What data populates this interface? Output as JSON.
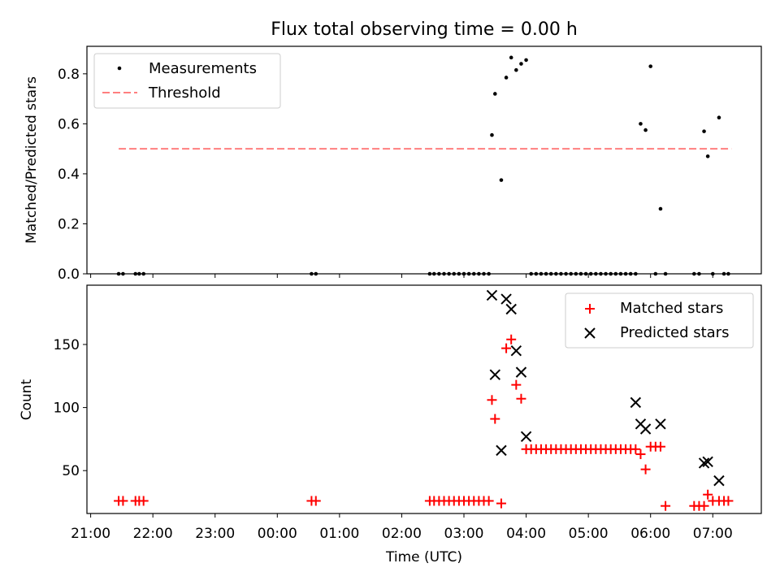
{
  "figure": {
    "title": "Flux total observing time = 0.00 h"
  },
  "chart_data": [
    {
      "panel": "top",
      "type": "scatter",
      "ylabel": "Matched/Predicted stars",
      "xlabel": "",
      "ylim": [
        0,
        0.91
      ],
      "yticks": [
        0.0,
        0.2,
        0.4,
        0.6,
        0.8
      ],
      "ytick_labels": [
        "0.0",
        "0.2",
        "0.4",
        "0.6",
        "0.8"
      ],
      "legend_position": "top-left",
      "threshold": {
        "name": "Threshold",
        "value": 0.5,
        "x_start": 21.45,
        "x_end": 31.3,
        "color": "#ff7f7f"
      },
      "series": [
        {
          "name": "Measurements",
          "marker": "dot",
          "color": "#000000",
          "x": [
            21.45,
            21.52,
            21.72,
            21.78,
            21.85,
            24.55,
            24.62,
            26.45,
            26.52,
            26.6,
            26.68,
            26.76,
            26.84,
            26.92,
            27.0,
            27.08,
            27.16,
            27.24,
            27.32,
            27.4,
            27.45,
            27.5,
            27.6,
            27.68,
            27.76,
            27.84,
            27.92,
            28.0,
            28.08,
            28.16,
            28.24,
            28.32,
            28.4,
            28.48,
            28.56,
            28.64,
            28.72,
            28.8,
            28.88,
            28.96,
            29.04,
            29.12,
            29.2,
            29.28,
            29.36,
            29.44,
            29.52,
            29.6,
            29.68,
            29.76,
            29.84,
            29.92,
            30.0,
            30.08,
            30.16,
            30.24,
            30.7,
            30.78,
            30.86,
            30.92,
            31.0,
            31.1,
            31.18,
            31.25
          ],
          "y": [
            0,
            0,
            0,
            0,
            0,
            0,
            0,
            0,
            0,
            0,
            0,
            0,
            0,
            0,
            0,
            0,
            0,
            0,
            0,
            0,
            0.555,
            0.72,
            0.375,
            0.785,
            0.865,
            0.815,
            0.84,
            0.855,
            0,
            0,
            0,
            0,
            0,
            0,
            0,
            0,
            0,
            0,
            0,
            0,
            0,
            0,
            0,
            0,
            0,
            0,
            0,
            0,
            0,
            0,
            0.6,
            0.575,
            0.83,
            0,
            0.26,
            0,
            0,
            0,
            0.57,
            0.47,
            0,
            0.625,
            0,
            0
          ]
        }
      ]
    },
    {
      "panel": "bottom",
      "type": "scatter",
      "ylabel": "Count",
      "xlabel": "Time (UTC)",
      "ylim": [
        16,
        197
      ],
      "yticks": [
        50,
        100,
        150
      ],
      "ytick_labels": [
        "50",
        "100",
        "150"
      ],
      "xlim": [
        20.94,
        31.78
      ],
      "xticks": [
        21,
        22,
        23,
        24,
        25,
        26,
        27,
        28,
        29,
        30,
        31
      ],
      "xtick_labels": [
        "21:00",
        "22:00",
        "23:00",
        "00:00",
        "01:00",
        "02:00",
        "03:00",
        "04:00",
        "05:00",
        "06:00",
        "07:00"
      ],
      "legend_position": "top-right",
      "series": [
        {
          "name": "Matched stars",
          "marker": "plus",
          "color": "#ff0000",
          "x": [
            21.45,
            21.52,
            21.72,
            21.78,
            21.85,
            24.55,
            24.62,
            26.45,
            26.52,
            26.6,
            26.68,
            26.76,
            26.84,
            26.92,
            27.0,
            27.08,
            27.16,
            27.24,
            27.32,
            27.4,
            27.45,
            27.5,
            27.6,
            27.68,
            27.76,
            27.84,
            27.92,
            28.0,
            28.08,
            28.16,
            28.24,
            28.32,
            28.4,
            28.48,
            28.56,
            28.64,
            28.72,
            28.8,
            28.88,
            28.96,
            29.04,
            29.12,
            29.2,
            29.28,
            29.36,
            29.44,
            29.52,
            29.6,
            29.68,
            29.76,
            29.84,
            29.92,
            30.0,
            30.08,
            30.16,
            30.24,
            30.7,
            30.78,
            30.86,
            30.92,
            31.0,
            31.1,
            31.18,
            31.25
          ],
          "y": [
            26,
            26,
            26,
            26,
            26,
            26,
            26,
            26,
            26,
            26,
            26,
            26,
            26,
            26,
            26,
            26,
            26,
            26,
            26,
            26,
            106,
            91,
            24,
            147,
            154,
            118,
            107,
            67,
            67,
            67,
            67,
            67,
            67,
            67,
            67,
            67,
            67,
            67,
            67,
            67,
            67,
            67,
            67,
            67,
            67,
            67,
            67,
            67,
            67,
            67,
            63,
            51,
            69,
            69,
            69,
            22,
            22,
            22,
            22,
            31,
            26,
            26,
            26,
            26
          ]
        },
        {
          "name": "Predicted stars",
          "marker": "x",
          "color": "#000000",
          "x": [
            27.45,
            27.5,
            27.6,
            27.68,
            27.76,
            27.84,
            27.92,
            28.0,
            29.76,
            29.84,
            29.92,
            30.16,
            30.86,
            30.92,
            31.1
          ],
          "y": [
            189,
            126,
            66,
            186,
            178,
            145,
            128,
            77,
            104,
            87,
            83,
            87,
            56,
            57,
            42
          ]
        }
      ]
    }
  ]
}
